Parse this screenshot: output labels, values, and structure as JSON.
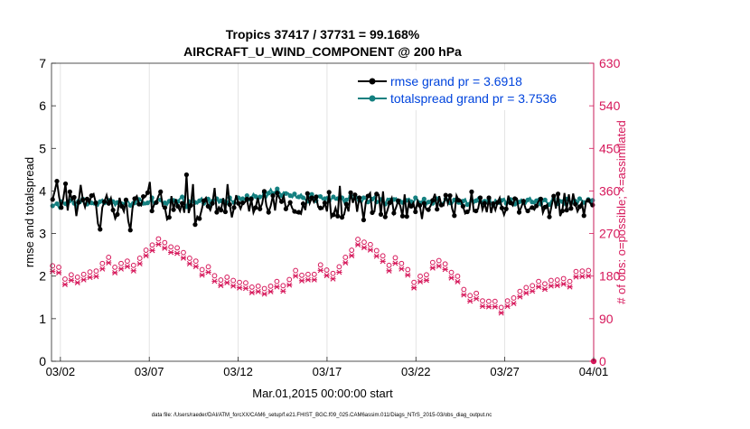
{
  "chart_data": {
    "type": "line",
    "title_line1": "Tropics 37417 / 37731 = 99.168%",
    "title_line2": "AIRCRAFT_U_WIND_COMPONENT @ 200 hPa",
    "xlabel": "Mar.01,2015 00:00:00 start",
    "ylabel_left": "rmse and totalspread",
    "ylabel_right": "# of obs: o=possible; ×=assimilated",
    "footer": "data file: /Users/raeder/DAI/ATM_forcXX/CAM6_setup/f.e21.FHIST_BGC.f09_025.CAM6assim.011/Diags_NTrS_2015-03/obs_diag_output.nc",
    "xlim_days": [
      0.5,
      31.0
    ],
    "ylim_left": [
      0,
      7
    ],
    "ylim_right": [
      0,
      630
    ],
    "x_ticks": [
      {
        "day": 1,
        "label": "03/02"
      },
      {
        "day": 6,
        "label": "03/07"
      },
      {
        "day": 11,
        "label": "03/12"
      },
      {
        "day": 16,
        "label": "03/17"
      },
      {
        "day": 21,
        "label": "03/22"
      },
      {
        "day": 26,
        "label": "03/27"
      },
      {
        "day": 31,
        "label": "04/01"
      }
    ],
    "y_ticks_left": [
      "0",
      "1",
      "2",
      "3",
      "4",
      "5",
      "6",
      "7"
    ],
    "y_ticks_right": [
      "0",
      "90",
      "180",
      "270",
      "360",
      "450",
      "540",
      "630"
    ],
    "colors": {
      "rmse": "#000000",
      "spread": "#148080",
      "obs": "#d6175a",
      "legend_text": "#0044dd"
    },
    "series": [
      {
        "name": "rmse",
        "legend": "rmse grand pr = 3.6918",
        "values": [
          3.8,
          4.0,
          4.23,
          3.86,
          3.61,
          3.83,
          4.17,
          3.54,
          3.98,
          3.79,
          3.85,
          3.41,
          3.73,
          4.14,
          3.79,
          3.62,
          3.81,
          3.72,
          3.89,
          3.93,
          3.72,
          3.23,
          3.1,
          3.61,
          3.75,
          3.9,
          3.71,
          3.83,
          3.55,
          3.35,
          3.45,
          3.84,
          3.64,
          3.52,
          3.79,
          3.3,
          3.08,
          3.59,
          3.82,
          3.88,
          3.69,
          3.66,
          3.87,
          3.87,
          3.96,
          4.21,
          3.53,
          3.68,
          3.73,
          3.88,
          3.98,
          3.64,
          3.61,
          3.33,
          3.38,
          3.88,
          3.56,
          3.81,
          3.64,
          3.53,
          3.71,
          3.49,
          4.38,
          3.48,
          3.66,
          4.16,
          3.21,
          3.4,
          3.35,
          3.55,
          3.77,
          3.84,
          3.64,
          3.55,
          3.71,
          4.07,
          3.5,
          3.62,
          3.55,
          3.83,
          3.51,
          4.16,
          3.68,
          3.38,
          3.61,
          3.9,
          3.71,
          3.58,
          3.72,
          3.73,
          3.81,
          3.52,
          3.81,
          3.49,
          3.61,
          3.84,
          3.58,
          3.7,
          3.99,
          3.66,
          3.5,
          3.65,
          3.89,
          3.54,
          3.95,
          3.83,
          3.75,
          3.88,
          3.58,
          3.65,
          3.73,
          3.59,
          3.52,
          3.48,
          3.5,
          3.46,
          3.7,
          3.55,
          3.94,
          3.71,
          3.84,
          3.74,
          3.86,
          3.62,
          3.6,
          3.58,
          3.72,
          3.52,
          3.97,
          3.38,
          3.44,
          3.6,
          3.41,
          4.12,
          3.38,
          3.45,
          3.69,
          3.52,
          3.96,
          3.72,
          3.91,
          3.51,
          3.84,
          3.7,
          3.32,
          3.73,
          3.88,
          3.95,
          3.49,
          3.52,
          3.93,
          3.91,
          3.45,
          3.99,
          3.39,
          3.54,
          3.72,
          3.83,
          3.48,
          3.61,
          3.77,
          3.64,
          3.41,
          3.92,
          3.4,
          3.75,
          3.64,
          3.72,
          3.51,
          3.76,
          3.66,
          3.34,
          3.71,
          3.57,
          3.56,
          3.65,
          3.78,
          3.93,
          3.57,
          3.88,
          3.67,
          3.66,
          3.9,
          3.71,
          3.89,
          3.58,
          3.42,
          3.89,
          3.78,
          3.78,
          3.64,
          3.47,
          3.51,
          3.55,
          3.98,
          3.52,
          3.53,
          3.58,
          3.84,
          3.56,
          3.71,
          3.5,
          3.84,
          3.48,
          3.7,
          3.55,
          3.73,
          3.84,
          3.6,
          3.44,
          3.58,
          3.89,
          3.72,
          3.66,
          3.82,
          3.82,
          3.5,
          3.62,
          3.76,
          3.58,
          3.53,
          3.59,
          3.61,
          3.56,
          3.65,
          3.76,
          3.81,
          3.49,
          3.62,
          3.68,
          3.39,
          3.65,
          3.88,
          3.59,
          3.93,
          3.41,
          3.53,
          3.95,
          3.55,
          3.92,
          3.59,
          3.94,
          3.69,
          3.52,
          3.63,
          3.73,
          3.42,
          3.76,
          3.78,
          3.71,
          3.67
        ]
      },
      {
        "name": "totalspread",
        "legend": "totalspread grand pr = 3.7536",
        "values": [
          3.65,
          3.68,
          3.7,
          3.6,
          3.75,
          3.73,
          3.7,
          3.62,
          3.77,
          3.78,
          3.71,
          3.62,
          3.76,
          3.72,
          3.81,
          3.67,
          3.69,
          3.78,
          3.72,
          3.68,
          3.7,
          3.65,
          3.75,
          3.8,
          3.72,
          3.71,
          3.78,
          3.82,
          3.75,
          3.66,
          3.73,
          3.77,
          3.7,
          3.69,
          3.79,
          3.75,
          3.66,
          3.74,
          3.72,
          3.76,
          3.8,
          3.78,
          3.71,
          3.68,
          3.72,
          3.76,
          3.84,
          3.67,
          3.73,
          3.81,
          3.79,
          3.7,
          3.72,
          3.67,
          3.76,
          3.82,
          3.78,
          3.7,
          3.75,
          3.82,
          3.86,
          3.72,
          3.63,
          3.79,
          3.74,
          3.82,
          3.73,
          3.7,
          3.77,
          3.83,
          3.71,
          3.78,
          3.81,
          3.67,
          3.76,
          3.79,
          3.82,
          3.72,
          3.77,
          3.81,
          3.75,
          3.69,
          3.84,
          3.76,
          3.73,
          3.86,
          3.84,
          3.78,
          3.82,
          3.79,
          3.89,
          3.78,
          3.83,
          3.93,
          3.87,
          3.78,
          3.86,
          3.88,
          3.96,
          3.85,
          3.95,
          4.04,
          3.94,
          3.98,
          4.05,
          3.97,
          3.89,
          3.97,
          3.94,
          3.95,
          3.89,
          3.85,
          3.93,
          3.84,
          3.86,
          3.92,
          3.84,
          3.8,
          3.76,
          3.87,
          3.92,
          3.81,
          3.77,
          3.89,
          3.87,
          3.8,
          3.82,
          3.86,
          3.77,
          3.81,
          3.86,
          3.79,
          3.82,
          3.89,
          3.84,
          3.73,
          3.79,
          3.83,
          3.88,
          3.77,
          3.83,
          3.86,
          3.78,
          3.72,
          3.84,
          3.82,
          3.74,
          3.79,
          3.81,
          3.87,
          3.74,
          3.77,
          3.8,
          3.73,
          3.69,
          3.82,
          3.79,
          3.76,
          3.8,
          3.83,
          3.75,
          3.79,
          3.73,
          3.71,
          3.78,
          3.82,
          3.75,
          3.71,
          3.84,
          3.79,
          3.72,
          3.76,
          3.81,
          3.67,
          3.74,
          3.78,
          3.71,
          3.75,
          3.82,
          3.77,
          3.68,
          3.74,
          3.81,
          3.79,
          3.72,
          3.7,
          3.79,
          3.83,
          3.73,
          3.69,
          3.76,
          3.81,
          3.68,
          3.73,
          3.78,
          3.71,
          3.77,
          3.84,
          3.75,
          3.68,
          3.76,
          3.72,
          3.8,
          3.74,
          3.68,
          3.79,
          3.73,
          3.69,
          3.78,
          3.82,
          3.71,
          3.76,
          3.8,
          3.72,
          3.69,
          3.78,
          3.74,
          3.8,
          3.73,
          3.7,
          3.79,
          3.84,
          3.74,
          3.7,
          3.77,
          3.82,
          3.69,
          3.75,
          3.79,
          3.72,
          3.68,
          3.78,
          3.82,
          3.73,
          3.7,
          3.79,
          3.75,
          3.68,
          3.81,
          3.77,
          3.72,
          3.8,
          3.76,
          3.7,
          3.82,
          3.78,
          3.73,
          3.76,
          3.8,
          3.71,
          3.78
        ]
      },
      {
        "name": "obs_possible",
        "axis": "right",
        "marker": "o",
        "values": [
          196,
          200,
          207,
          193,
          169,
          166,
          168,
          174,
          173,
          177,
          180,
          183,
          172,
          167,
          169,
          178,
          178,
          179,
          183,
          187,
          184,
          185,
          186,
          189,
          201,
          202,
          203,
          214,
          205,
          199,
          193,
          202,
          204,
          201,
          207,
          209,
          206,
          202,
          203,
          197,
          205,
          207,
          212,
          215,
          223,
          229,
          230,
          238,
          240,
          246,
          253,
          253,
          247,
          242,
          245,
          248,
          246,
          236,
          232,
          234,
          234,
          231,
          230,
          224,
          217,
          214,
          212,
          211,
          212,
          206,
          198,
          192,
          188,
          189,
          194,
          194,
          189,
          183,
          175,
          171,
          172,
          166,
          158,
          160,
          172,
          173,
          173,
          165,
          159,
          157,
          161,
          161,
          159,
          160,
          164,
          161,
          151,
          145,
          148,
          153,
          152,
          146,
          148,
          157,
          162,
          153,
          151,
          157,
          163,
          161,
          156,
          154,
          163,
          170,
          167,
          173,
          181,
          186,
          189,
          181,
          176,
          179,
          180,
          178,
          172,
          168,
          178,
          194,
          201,
          198,
          185,
          186,
          187,
          195,
          188,
          180,
          190,
          194,
          194,
          198,
          203,
          214,
          226,
          235,
          229,
          233,
          245,
          252,
          256,
          252,
          246,
          249,
          251,
          241,
          234,
          233,
          228,
          221,
          222,
          217,
          211,
          202,
          197,
          203,
          210,
          213,
          206,
          202,
          201,
          200,
          197,
          188,
          173,
          164,
          161,
          154,
          163,
          174,
          178,
          175,
          177,
          183,
          194,
          203,
          209,
          205,
          207,
          215,
          212,
          200,
          197,
          192,
          182,
          179,
          179,
          174,
          159,
          152,
          146,
          138,
          131,
          133,
          139,
          139,
          138,
          134,
          125,
          122,
          119,
          117,
          121,
          124,
          125,
          121,
          116,
          110,
          108,
          110,
          115,
          122,
          129,
          131,
          128,
          129,
          135,
          142,
          145,
          147,
          150,
          153,
          150,
          154,
          156,
          161,
          163,
          155,
          153,
          158,
          162,
          164,
          165,
          171,
          173,
          166,
          169,
          170,
          169,
          170,
          166,
          163,
          165,
          174,
          184,
          190,
          186,
          185,
          183,
          189,
          186,
          181,
          182
        ]
      },
      {
        "name": "obs_assimilated",
        "axis": "right",
        "marker": "x",
        "values": [
          194,
          198,
          205,
          191,
          167,
          164,
          166,
          172,
          171,
          175,
          178,
          181,
          170,
          165,
          167,
          176,
          176,
          177,
          181,
          185,
          182,
          183,
          184,
          187,
          199,
          200,
          201,
          212,
          203,
          197,
          191,
          200,
          202,
          199,
          205,
          207,
          204,
          200,
          201,
          195,
          203,
          205,
          210,
          213,
          221,
          227,
          228,
          236,
          238,
          244,
          251,
          251,
          245,
          240,
          243,
          246,
          244,
          234,
          230,
          232,
          232,
          229,
          228,
          222,
          215,
          212,
          210,
          209,
          210,
          204,
          196,
          190,
          186,
          187,
          192,
          192,
          187,
          181,
          173,
          169,
          170,
          164,
          156,
          158,
          170,
          171,
          171,
          163,
          157,
          155,
          159,
          159,
          157,
          158,
          162,
          159,
          149,
          143,
          146,
          151,
          150,
          144,
          146,
          155,
          160,
          151,
          149,
          155,
          161,
          159,
          154,
          152,
          161,
          168,
          165,
          171,
          179,
          184,
          187,
          179,
          174,
          177,
          178,
          176,
          170,
          166,
          176,
          192,
          199,
          196,
          183,
          184,
          185,
          193,
          186,
          178,
          188,
          192,
          192,
          196,
          201,
          212,
          224,
          233,
          227,
          231,
          243,
          250,
          254,
          250,
          244,
          247,
          249,
          239,
          232,
          231,
          226,
          219,
          220,
          215,
          209,
          200,
          195,
          201,
          208,
          211,
          204,
          200,
          199,
          198,
          195,
          186,
          171,
          162,
          159,
          152,
          161,
          172,
          176,
          173,
          175,
          181,
          192,
          201,
          207,
          203,
          205,
          213,
          210,
          198,
          195,
          190,
          180,
          177,
          177,
          172,
          157,
          150,
          144,
          136,
          129,
          131,
          137,
          137,
          136,
          132,
          123,
          120,
          117,
          115,
          119,
          122,
          123,
          119,
          114,
          108,
          106,
          108,
          113,
          120,
          127,
          129,
          126,
          127,
          133,
          140,
          143,
          145,
          148,
          151,
          148,
          152,
          154,
          159,
          161,
          153,
          151,
          156,
          160,
          162,
          163,
          169,
          171,
          164,
          167,
          168,
          167,
          168,
          164,
          161,
          163,
          172,
          182,
          188,
          184,
          183,
          181,
          187,
          184,
          179,
          180
        ]
      }
    ]
  }
}
